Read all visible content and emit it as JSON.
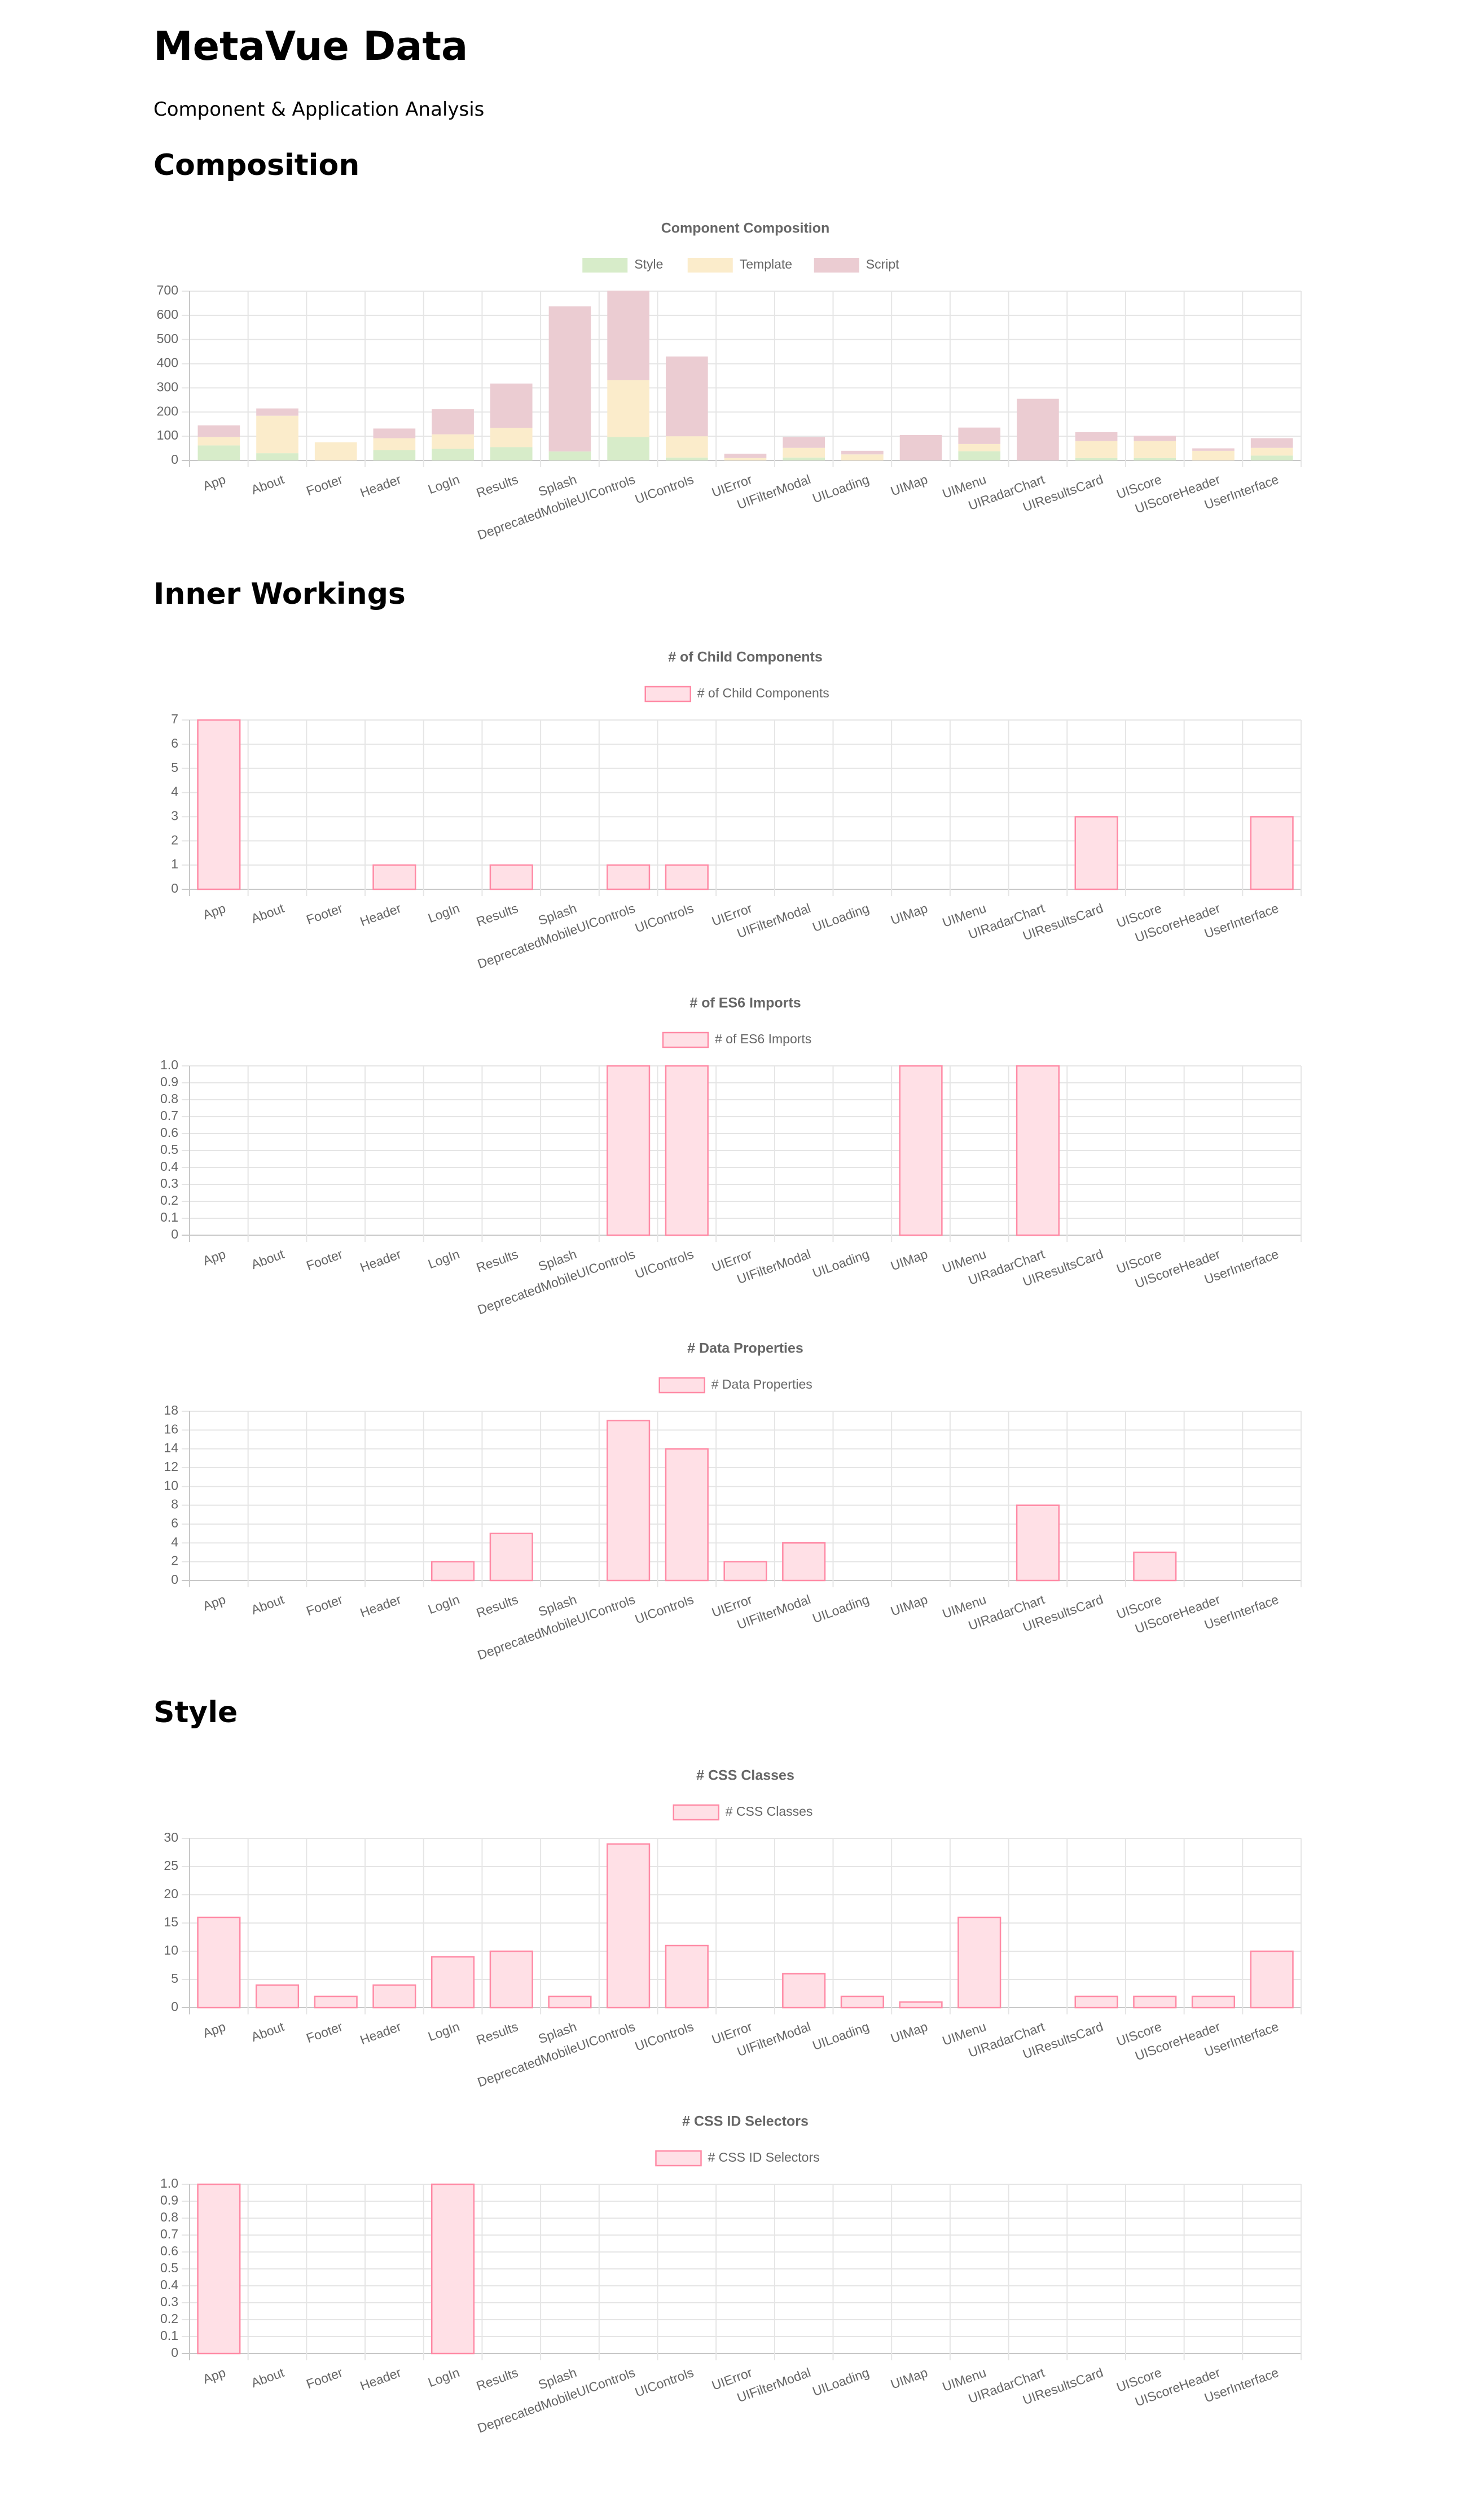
{
  "page": {
    "title": "MetaVue Data",
    "subtitle": "Component & Application Analysis"
  },
  "sections": {
    "composition": "Composition",
    "inner_workings": "Inner Workings",
    "style": "Style"
  },
  "colors": {
    "style_fill": "#d7ecc9",
    "template_fill": "#fbeccb",
    "script_fill": "#ebccd2",
    "pink_fill": "#ffe0e6",
    "pink_border": "#ff8aa5",
    "tick_text": "#666666",
    "grid": "#e5e5e5"
  },
  "chart_data": [
    {
      "id": "composition",
      "type": "bar",
      "stacked": true,
      "title": "Component Composition",
      "categories": [
        "App",
        "About",
        "Footer",
        "Header",
        "LogIn",
        "Results",
        "Splash",
        "DeprecatedMobileUIControls",
        "UIControls",
        "UIError",
        "UIFilterModal",
        "UILoading",
        "UIMap",
        "UIMenu",
        "UIRadarChart",
        "UIResultsCard",
        "UIScore",
        "UIScoreHeader",
        "UserInterface"
      ],
      "series": [
        {
          "name": "Style",
          "values": [
            62,
            30,
            0,
            42,
            48,
            55,
            37,
            97,
            12,
            0,
            12,
            0,
            0,
            38,
            0,
            10,
            10,
            0,
            20
          ]
        },
        {
          "name": "Template",
          "values": [
            35,
            155,
            75,
            50,
            60,
            80,
            0,
            235,
            88,
            10,
            40,
            25,
            0,
            30,
            0,
            70,
            70,
            40,
            32
          ]
        },
        {
          "name": "Script",
          "values": [
            48,
            30,
            0,
            40,
            104,
            183,
            600,
            370,
            330,
            18,
            45,
            15,
            105,
            68,
            255,
            37,
            22,
            10,
            40
          ]
        }
      ],
      "ylim": [
        0,
        700
      ],
      "yticks": [
        "0",
        "100",
        "200",
        "300",
        "400",
        "500",
        "600",
        "700"
      ],
      "legend_position": "top",
      "grid": true
    },
    {
      "id": "child_components",
      "type": "bar",
      "title": "# of Child Components",
      "categories": [
        "App",
        "About",
        "Footer",
        "Header",
        "LogIn",
        "Results",
        "Splash",
        "DeprecatedMobileUIControls",
        "UIControls",
        "UIError",
        "UIFilterModal",
        "UILoading",
        "UIMap",
        "UIMenu",
        "UIRadarChart",
        "UIResultsCard",
        "UIScore",
        "UIScoreHeader",
        "UserInterface"
      ],
      "series": [
        {
          "name": "# of Child Components",
          "values": [
            7,
            0,
            0,
            1,
            0,
            1,
            0,
            1,
            1,
            0,
            0,
            0,
            0,
            0,
            0,
            3,
            0,
            0,
            3
          ]
        }
      ],
      "ylim": [
        0,
        7
      ],
      "yticks": [
        "0",
        "1",
        "2",
        "3",
        "4",
        "5",
        "6",
        "7"
      ],
      "legend_position": "top",
      "grid": true
    },
    {
      "id": "es6_imports",
      "type": "bar",
      "title": "# of ES6 Imports",
      "categories": [
        "App",
        "About",
        "Footer",
        "Header",
        "LogIn",
        "Results",
        "Splash",
        "DeprecatedMobileUIControls",
        "UIControls",
        "UIError",
        "UIFilterModal",
        "UILoading",
        "UIMap",
        "UIMenu",
        "UIRadarChart",
        "UIResultsCard",
        "UIScore",
        "UIScoreHeader",
        "UserInterface"
      ],
      "series": [
        {
          "name": "# of ES6 Imports",
          "values": [
            0,
            0,
            0,
            0,
            0,
            0,
            0,
            1,
            1,
            0,
            0,
            0,
            1,
            0,
            1,
            0,
            0,
            0,
            0
          ]
        }
      ],
      "ylim": [
        0,
        1
      ],
      "yticks": [
        "0",
        "0.1",
        "0.2",
        "0.3",
        "0.4",
        "0.5",
        "0.6",
        "0.7",
        "0.8",
        "0.9",
        "1.0"
      ],
      "legend_position": "top",
      "grid": true
    },
    {
      "id": "data_properties",
      "type": "bar",
      "title": "# Data Properties",
      "categories": [
        "App",
        "About",
        "Footer",
        "Header",
        "LogIn",
        "Results",
        "Splash",
        "DeprecatedMobileUIControls",
        "UIControls",
        "UIError",
        "UIFilterModal",
        "UILoading",
        "UIMap",
        "UIMenu",
        "UIRadarChart",
        "UIResultsCard",
        "UIScore",
        "UIScoreHeader",
        "UserInterface"
      ],
      "series": [
        {
          "name": "# Data Properties",
          "values": [
            0,
            0,
            0,
            0,
            2,
            5,
            0,
            17,
            14,
            2,
            4,
            0,
            0,
            0,
            8,
            0,
            3,
            0,
            0
          ]
        }
      ],
      "ylim": [
        0,
        18
      ],
      "yticks": [
        "0",
        "2",
        "4",
        "6",
        "8",
        "10",
        "12",
        "14",
        "16",
        "18"
      ],
      "legend_position": "top",
      "grid": true
    },
    {
      "id": "css_classes",
      "type": "bar",
      "title": "# CSS Classes",
      "categories": [
        "App",
        "About",
        "Footer",
        "Header",
        "LogIn",
        "Results",
        "Splash",
        "DeprecatedMobileUIControls",
        "UIControls",
        "UIError",
        "UIFilterModal",
        "UILoading",
        "UIMap",
        "UIMenu",
        "UIRadarChart",
        "UIResultsCard",
        "UIScore",
        "UIScoreHeader",
        "UserInterface"
      ],
      "series": [
        {
          "name": "# CSS Classes",
          "values": [
            16,
            4,
            2,
            4,
            9,
            10,
            2,
            29,
            11,
            0,
            6,
            2,
            1,
            16,
            0,
            2,
            2,
            2,
            10
          ]
        }
      ],
      "ylim": [
        0,
        30
      ],
      "yticks": [
        "0",
        "5",
        "10",
        "15",
        "20",
        "25",
        "30"
      ],
      "legend_position": "top",
      "grid": true
    },
    {
      "id": "css_id_selectors",
      "type": "bar",
      "title": "# CSS ID Selectors",
      "categories": [
        "App",
        "About",
        "Footer",
        "Header",
        "LogIn",
        "Results",
        "Splash",
        "DeprecatedMobileUIControls",
        "UIControls",
        "UIError",
        "UIFilterModal",
        "UILoading",
        "UIMap",
        "UIMenu",
        "UIRadarChart",
        "UIResultsCard",
        "UIScore",
        "UIScoreHeader",
        "UserInterface"
      ],
      "series": [
        {
          "name": "# CSS ID Selectors",
          "values": [
            1,
            0,
            0,
            0,
            1,
            0,
            0,
            0,
            0,
            0,
            0,
            0,
            0,
            0,
            0,
            0,
            0,
            0,
            0
          ]
        }
      ],
      "ylim": [
        0,
        1
      ],
      "yticks": [
        "0",
        "0.1",
        "0.2",
        "0.3",
        "0.4",
        "0.5",
        "0.6",
        "0.7",
        "0.8",
        "0.9",
        "1.0"
      ],
      "legend_position": "top",
      "grid": true
    }
  ]
}
